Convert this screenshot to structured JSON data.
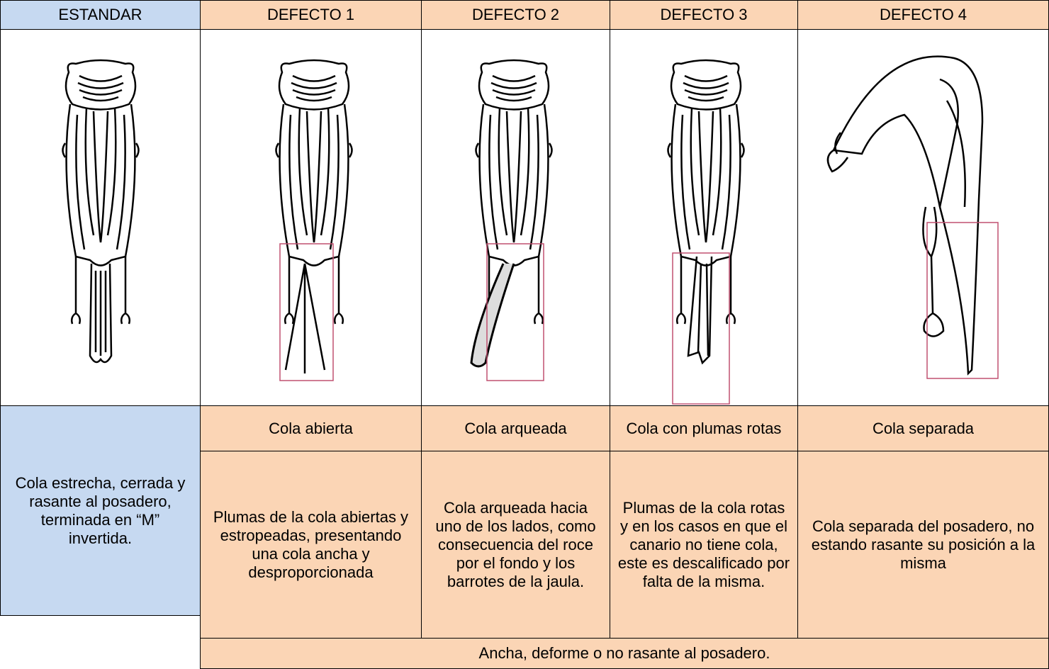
{
  "header": [
    "ESTANDAR",
    "DEFECTO 1",
    "DEFECTO 2",
    "DEFECTO 3",
    "DEFECTO 4"
  ],
  "standard": {
    "description": "Cola estrecha, cerrada y rasante al posadero, terminada en “M” invertida."
  },
  "defects": [
    {
      "name": "Cola abierta",
      "description": "Plumas de la cola abiertas y estropeadas, presentando una cola ancha y desproporcionada"
    },
    {
      "name": "Cola arqueada",
      "description": "Cola arqueada hacia uno de los lados, como consecuencia del roce por el fondo y los barrotes de la jaula."
    },
    {
      "name": "Cola con plumas rotas",
      "description": "Plumas de la cola rotas y en los casos en que el canario no tiene cola, este es descalificado por falta de la misma."
    },
    {
      "name": "Cola separada",
      "description": "Cola separada del posadero, no estando rasante su posición a la misma"
    }
  ],
  "footer": "Ancha, deforme o no rasante al posadero."
}
